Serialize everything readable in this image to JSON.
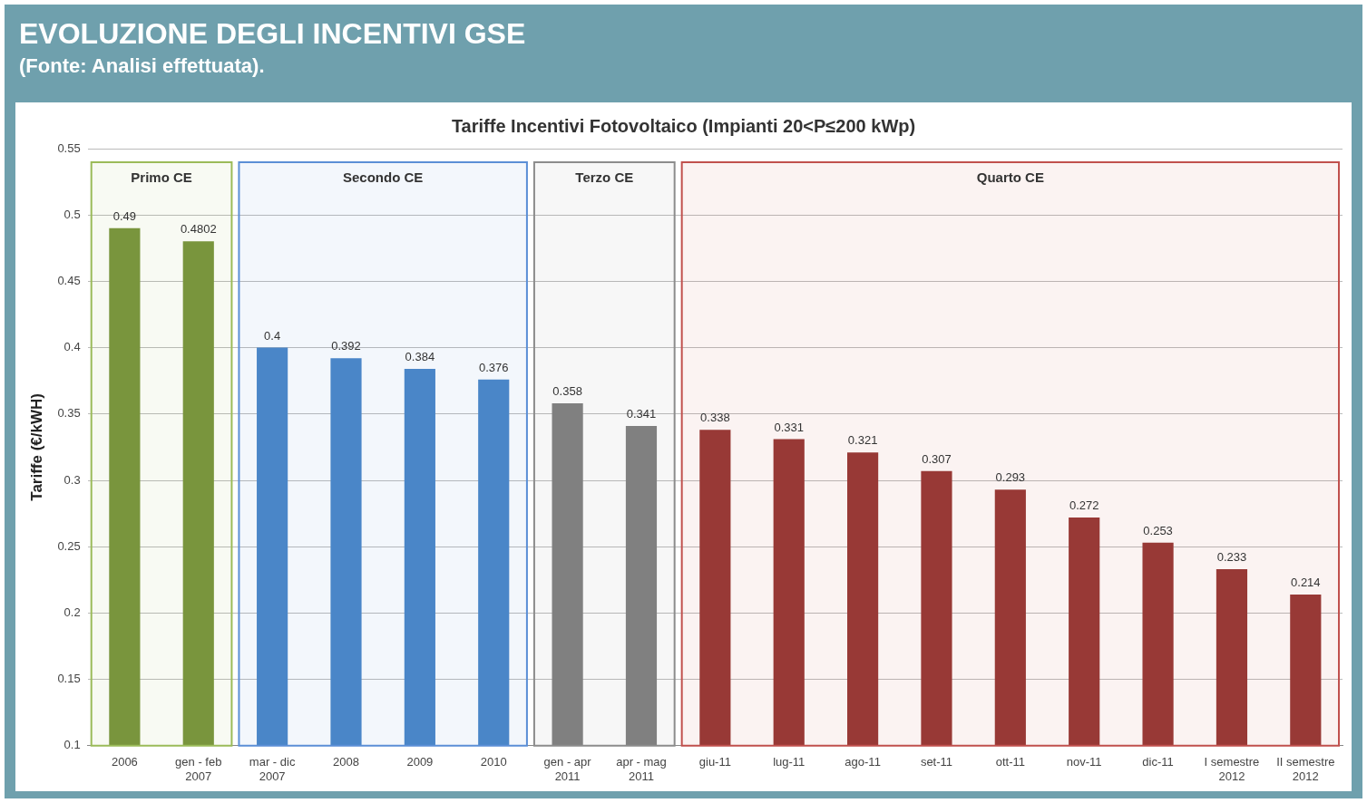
{
  "chart_data": {
    "type": "bar",
    "title": "EVOLUZIONE DEGLI INCENTIVI GSE",
    "subtitle": "Tariffe Incentivi Fotovoltaico (Impianti 20<P≤200 kWp)",
    "annotations": [
      "(Fonte: Analisi effettuata)."
    ],
    "ylabel": "Tariffe (€/kWH)",
    "categories": [
      "2006",
      "gen - feb 2007",
      "mar - dic 2007",
      "2008",
      "2009",
      "2010",
      "gen - apr 2011",
      "apr - mag 2011",
      "giu-11",
      "lug-11",
      "ago-11",
      "set-11",
      "ott-11",
      "nov-11",
      "dic-11",
      "I semestre 2012",
      "II semestre 2012"
    ],
    "values": [
      0.49,
      0.4802,
      0.4,
      0.392,
      0.384,
      0.376,
      0.358,
      0.341,
      0.338,
      0.331,
      0.321,
      0.307,
      0.293,
      0.272,
      0.253,
      0.233,
      0.214
    ],
    "colors": [
      "#77933c",
      "#77933c",
      "#4a86c8",
      "#4a86c8",
      "#4a86c8",
      "#4a86c8",
      "#7f7f7f",
      "#7f7f7f",
      "#953735",
      "#953735",
      "#953735",
      "#953735",
      "#953735",
      "#953735",
      "#953735",
      "#953735",
      "#953735"
    ],
    "data_labels": true,
    "ylim": [
      0.1,
      0.55
    ],
    "yticks": [
      0.1,
      0.15,
      0.2,
      0.25,
      0.3,
      0.35,
      0.4,
      0.45,
      0.5,
      0.55
    ],
    "grid": "y",
    "legend": false,
    "bands": [
      {
        "axis": "x",
        "from": "2006",
        "to": "gen - feb 2007",
        "label": "Primo CE",
        "color": "#9bbb59"
      },
      {
        "axis": "x",
        "from": "mar - dic 2007",
        "to": "2010",
        "label": "Secondo CE",
        "color": "#5b8fd6"
      },
      {
        "axis": "x",
        "from": "gen - apr 2011",
        "to": "apr - mag 2011",
        "label": "Terzo CE",
        "color": "#8c8c8c"
      },
      {
        "axis": "x",
        "from": "giu-11",
        "to": "II semestre 2012",
        "label": "Quarto CE",
        "color": "#c0504d"
      }
    ]
  }
}
